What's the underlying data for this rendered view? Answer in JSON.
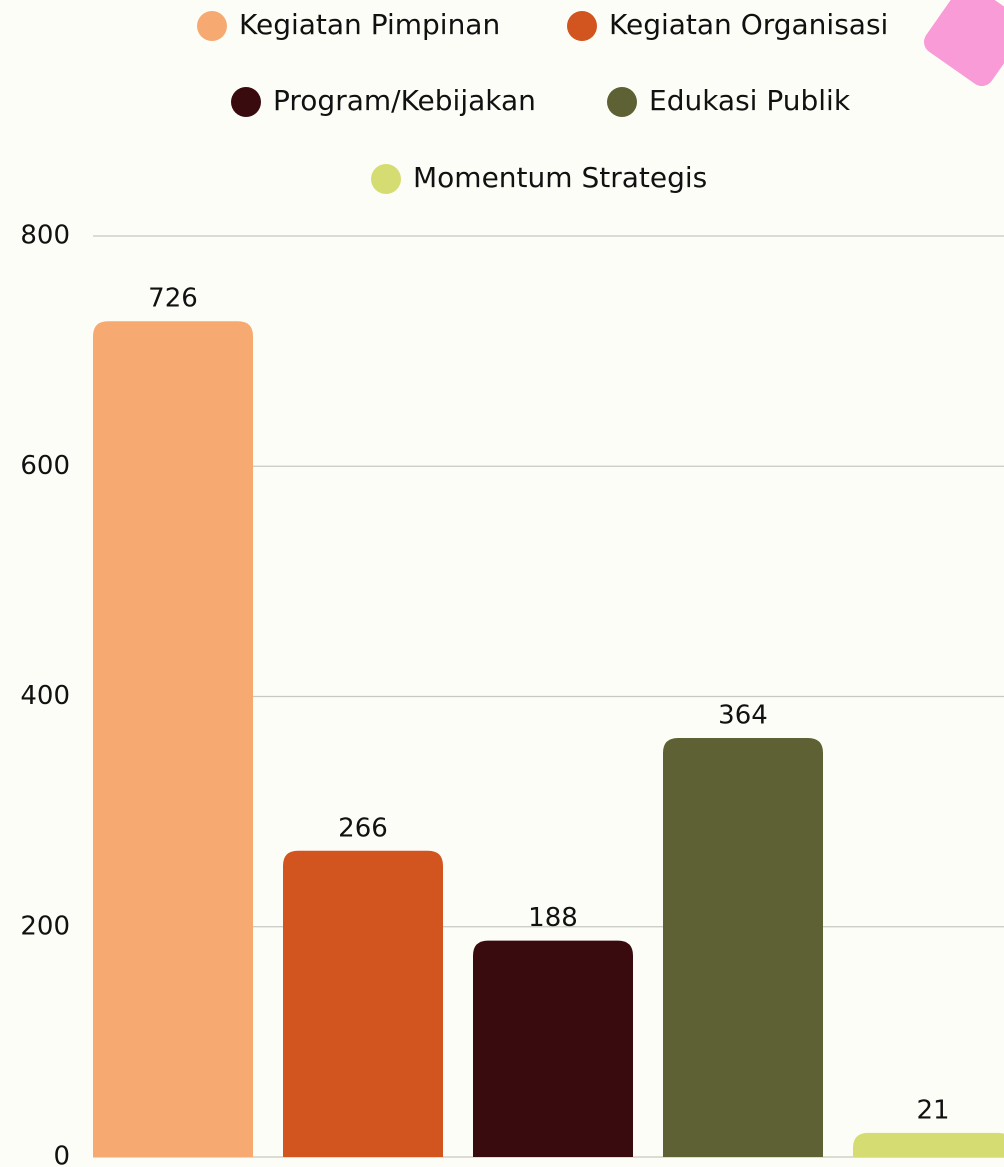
{
  "chart_data": {
    "type": "bar",
    "categories": [
      null
    ],
    "series": [
      {
        "name": "Kegiatan Pimpinan",
        "color": "#f6a971",
        "values": [
          726
        ]
      },
      {
        "name": "Kegiatan Organisasi",
        "color": "#d2541e",
        "values": [
          266
        ]
      },
      {
        "name": "Program/Kebijakan",
        "color": "#3a0b0e",
        "values": [
          188
        ]
      },
      {
        "name": "Edukasi Publik",
        "color": "#5d6133",
        "values": [
          364
        ]
      },
      {
        "name": "Momentum Strategis",
        "color": "#d5dd72",
        "values": [
          21
        ]
      }
    ],
    "ylim": [
      0,
      800
    ],
    "yticks": [
      0,
      200,
      400,
      600,
      800
    ],
    "grid": true,
    "value_labels_shown": true
  }
}
